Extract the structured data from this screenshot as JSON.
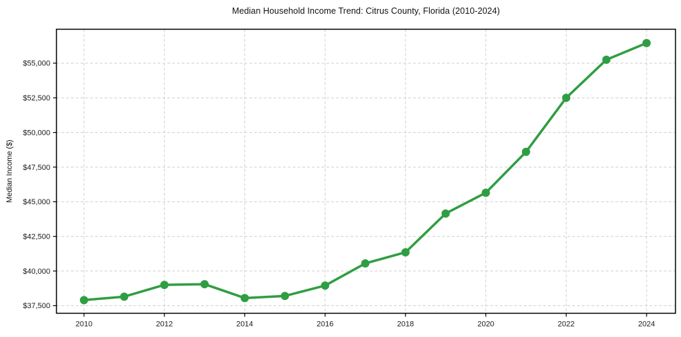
{
  "chart_data": {
    "type": "line",
    "title": "Median Household Income Trend: Citrus County, Florida (2010-2024)",
    "xlabel": "",
    "ylabel": "Median Income ($)",
    "x": [
      2010,
      2011,
      2012,
      2013,
      2014,
      2015,
      2016,
      2017,
      2018,
      2019,
      2020,
      2021,
      2022,
      2023,
      2024
    ],
    "values": [
      37900,
      38150,
      39000,
      39050,
      38050,
      38200,
      38950,
      40550,
      41350,
      44150,
      45650,
      48600,
      52500,
      55250,
      56450
    ],
    "series_name": "Median Household Income",
    "ylim": [
      36950,
      57450
    ],
    "yticks": [
      37500,
      40000,
      42500,
      45000,
      47500,
      50000,
      52500,
      55000
    ],
    "ytick_labels": [
      "$37,500",
      "$40,000",
      "$42,500",
      "$45,000",
      "$47,500",
      "$50,000",
      "$52,500",
      "$55,000"
    ],
    "xticks": [
      2010,
      2012,
      2014,
      2016,
      2018,
      2020,
      2022,
      2024
    ],
    "grid": true,
    "grid_style": "dashed",
    "legend": "none",
    "line_color": "#2f9e42",
    "marker_color": "#2f9e42",
    "grid_color": "#cfcfcf",
    "axis_color": "#000000",
    "tick_label_color": "#1a1a1a",
    "background": "#ffffff"
  }
}
